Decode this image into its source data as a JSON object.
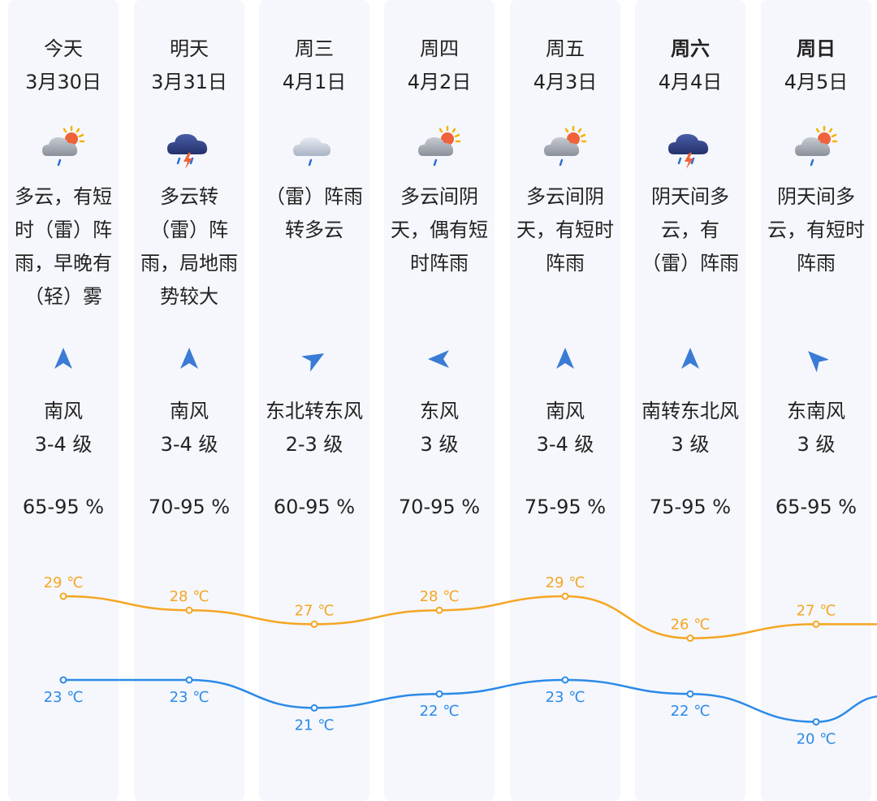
{
  "forecast": [
    {
      "day": "今天",
      "date": "3月30日",
      "icon": "cloudy-sun-rain-icon",
      "condition": "多云，有短时（雷）阵雨，早晚有（轻）雾",
      "wind_dir": "南风",
      "wind_level": "3-4 级",
      "humidity": "65-95 %",
      "bold": false
    },
    {
      "day": "明天",
      "date": "3月31日",
      "icon": "thunderstorm-icon",
      "condition": "多云转（雷）阵雨，局地雨势较大",
      "wind_dir": "南风",
      "wind_level": "3-4 级",
      "humidity": "70-95 %",
      "bold": false
    },
    {
      "day": "周三",
      "date": "4月1日",
      "icon": "cloud-rain-icon",
      "condition": "（雷）阵雨转多云",
      "wind_dir": "东北转东风",
      "wind_level": "2-3 级",
      "humidity": "60-95 %",
      "bold": false
    },
    {
      "day": "周四",
      "date": "4月2日",
      "icon": "cloudy-sun-rain-icon",
      "condition": "多云间阴天，偶有短时阵雨",
      "wind_dir": "东风",
      "wind_level": "3 级",
      "humidity": "70-95 %",
      "bold": false
    },
    {
      "day": "周五",
      "date": "4月3日",
      "icon": "cloudy-sun-rain-icon",
      "condition": "多云间阴天，有短时阵雨",
      "wind_dir": "南风",
      "wind_level": "3-4 级",
      "humidity": "75-95 %",
      "bold": false
    },
    {
      "day": "周六",
      "date": "4月4日",
      "icon": "thunderstorm-icon",
      "condition": "阴天间多云，有（雷）阵雨",
      "wind_dir": "南转东北风",
      "wind_level": "3 级",
      "humidity": "75-95 %",
      "bold": true
    },
    {
      "day": "周日",
      "date": "4月5日",
      "icon": "cloudy-sun-rain-icon",
      "condition": "阴天间多云，有短时阵雨",
      "wind_dir": "东南风",
      "wind_level": "3 级",
      "humidity": "65-95 %",
      "bold": true
    }
  ],
  "chart_data": {
    "type": "line",
    "x": [
      "3月30日",
      "3月31日",
      "4月1日",
      "4月2日",
      "4月3日",
      "4月4日",
      "4月5日"
    ],
    "series": [
      {
        "values": [
          29,
          28,
          27,
          28,
          29,
          26,
          27
        ],
        "labels": [
          "29 ℃",
          "28 ℃",
          "27 ℃",
          "28 ℃",
          "29 ℃",
          "26 ℃",
          "27 ℃"
        ],
        "color": "#f5a623"
      },
      {
        "values": [
          23,
          23,
          21,
          22,
          23,
          22,
          20
        ],
        "labels": [
          "23 ℃",
          "23 ℃",
          "21 ℃",
          "22 ℃",
          "23 ℃",
          "22 ℃",
          "20 ℃"
        ],
        "color": "#2b8ae8"
      }
    ],
    "grid": false,
    "legend": "none"
  },
  "colors": {
    "high": "#f5a623",
    "low": "#2b8ae8",
    "wind_arrow": "#3a7bd5",
    "column_bg": "#f5f7fc"
  }
}
